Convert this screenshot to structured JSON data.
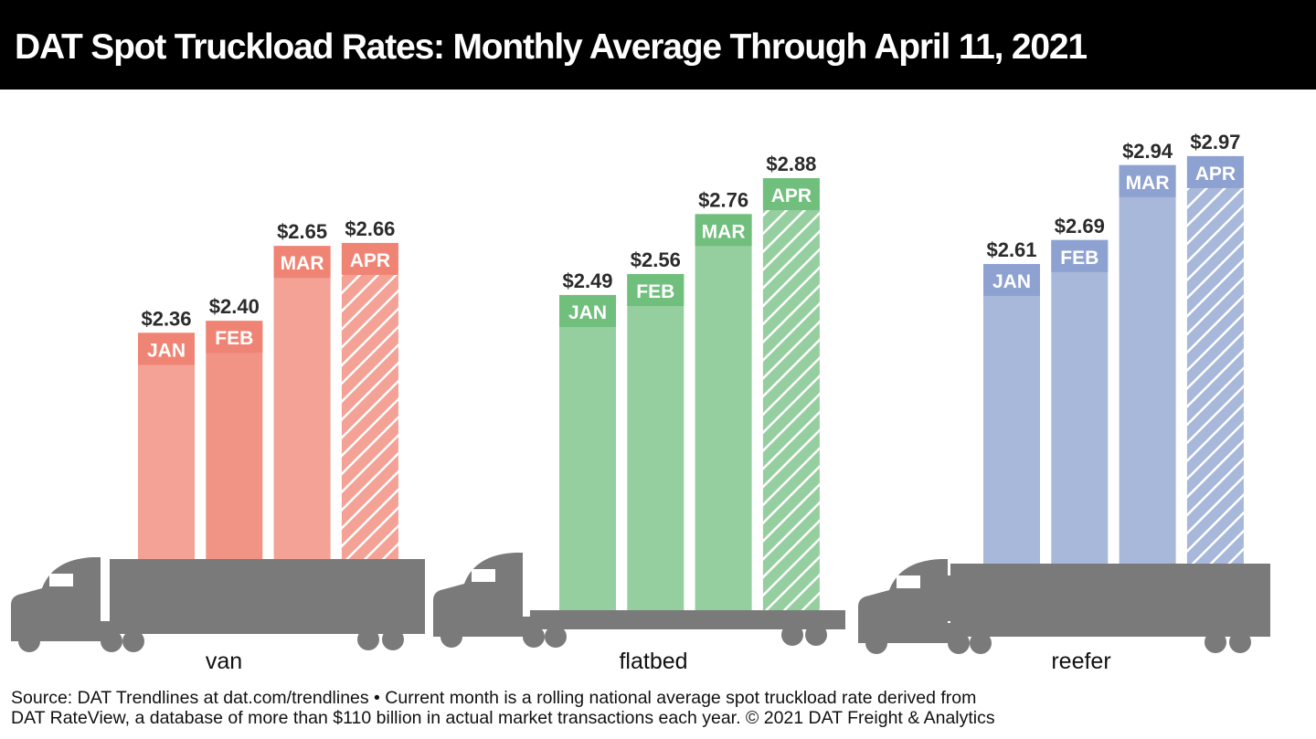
{
  "title": "DAT Spot Truckload Rates: Monthly Average Through April 11, 2021",
  "footer": {
    "line1": "Source: DAT Trendlines at dat.com/trendlines • Current month is a rolling national average spot truckload rate derived from",
    "line2": "DAT RateView, a database of more than $110 billion in actual market transactions each year. © 2021 DAT Freight & Analytics"
  },
  "chart_data": {
    "type": "bar",
    "title": "DAT Spot Truckload Rates: Monthly Average Through April 11, 2021",
    "categories": [
      "JAN",
      "FEB",
      "MAR",
      "APR"
    ],
    "value_prefix": "$",
    "current_month_hatched": "APR",
    "groups": [
      {
        "name": "van",
        "values": [
          2.36,
          2.4,
          2.65,
          2.66
        ],
        "labels": [
          "$2.36",
          "$2.40",
          "$2.65",
          "$2.66"
        ],
        "color": "#f4a196",
        "label_color": "#f08474",
        "truck": "van"
      },
      {
        "name": "flatbed",
        "values": [
          2.49,
          2.56,
          2.76,
          2.88
        ],
        "labels": [
          "$2.49",
          "$2.56",
          "$2.76",
          "$2.88"
        ],
        "color": "#96cf9f",
        "label_color": "#70bf7d",
        "truck": "flatbed"
      },
      {
        "name": "reefer",
        "values": [
          2.61,
          2.69,
          2.94,
          2.97
        ],
        "labels": [
          "$2.61",
          "$2.69",
          "$2.94",
          "$2.97"
        ],
        "color": "#a8b8da",
        "label_color": "#8ea2d1",
        "truck": "reefer"
      }
    ],
    "truck_color": "#7a7a7a",
    "legend": "none",
    "grid": false
  }
}
